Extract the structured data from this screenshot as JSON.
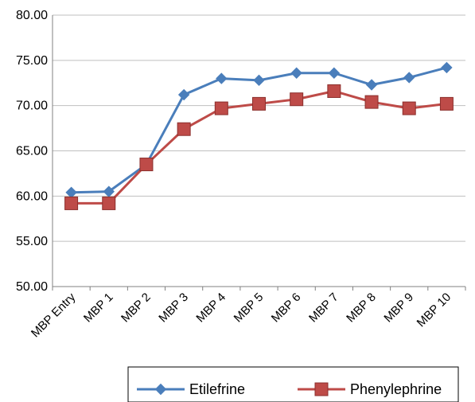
{
  "chart_data": {
    "type": "line",
    "title": "",
    "xlabel": "",
    "ylabel": "",
    "categories": [
      "MBP Entry",
      "MBP 1",
      "MBP 2",
      "MBP 3",
      "MBP 4",
      "MBP 5",
      "MBP 6",
      "MBP 7",
      "MBP 8",
      "MBP 9",
      "MBP 10"
    ],
    "ylim": [
      50,
      80
    ],
    "yticks": [
      "50.00",
      "55.00",
      "60.00",
      "65.00",
      "70.00",
      "75.00",
      "80.00"
    ],
    "grid": "horizontal",
    "legend_position": "bottom",
    "series": [
      {
        "name": "Etilefrine",
        "color": "#4a7ebb",
        "marker": "diamond",
        "values": [
          60.4,
          60.5,
          63.5,
          71.2,
          73.0,
          72.8,
          73.6,
          73.6,
          72.3,
          73.1,
          74.2
        ]
      },
      {
        "name": "Phenylephrine",
        "color": "#be4b48",
        "marker": "square",
        "values": [
          59.2,
          59.2,
          63.5,
          67.4,
          69.7,
          70.2,
          70.7,
          71.6,
          70.4,
          69.7,
          70.2
        ]
      }
    ]
  }
}
